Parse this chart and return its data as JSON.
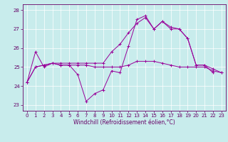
{
  "background_color": "#c8ecec",
  "line_color": "#990099",
  "spine_color": "#660066",
  "ylim": [
    22.7,
    28.3
  ],
  "xlim": [
    -0.5,
    23.5
  ],
  "yticks": [
    23,
    24,
    25,
    26,
    27,
    28
  ],
  "xticks": [
    0,
    1,
    2,
    3,
    4,
    5,
    6,
    7,
    8,
    9,
    10,
    11,
    12,
    13,
    14,
    15,
    16,
    17,
    18,
    19,
    20,
    21,
    22,
    23
  ],
  "xlabel": "Windchill (Refroidissement éolien,°C)",
  "s1": [
    24.2,
    25.8,
    25.0,
    25.2,
    25.1,
    25.1,
    24.6,
    23.2,
    23.6,
    23.8,
    24.8,
    24.7,
    26.1,
    27.5,
    27.7,
    27.0,
    27.4,
    27.1,
    27.0,
    26.5,
    25.1,
    25.1,
    24.7,
    null
  ],
  "s2": [
    24.2,
    25.0,
    25.1,
    25.2,
    25.1,
    25.1,
    25.1,
    25.1,
    25.0,
    25.0,
    25.0,
    25.0,
    25.1,
    25.3,
    25.3,
    25.3,
    25.2,
    25.1,
    25.0,
    25.0,
    25.0,
    25.0,
    24.8,
    24.7
  ],
  "s3": [
    24.2,
    25.0,
    25.1,
    25.2,
    25.2,
    25.2,
    25.2,
    25.2,
    25.2,
    25.2,
    25.8,
    26.2,
    26.8,
    27.3,
    27.6,
    27.0,
    27.4,
    27.0,
    27.0,
    26.5,
    25.1,
    25.1,
    24.9,
    24.7
  ],
  "tick_fontsize": 5.0,
  "xlabel_fontsize": 5.5,
  "linewidth": 0.7,
  "markersize": 3.0
}
